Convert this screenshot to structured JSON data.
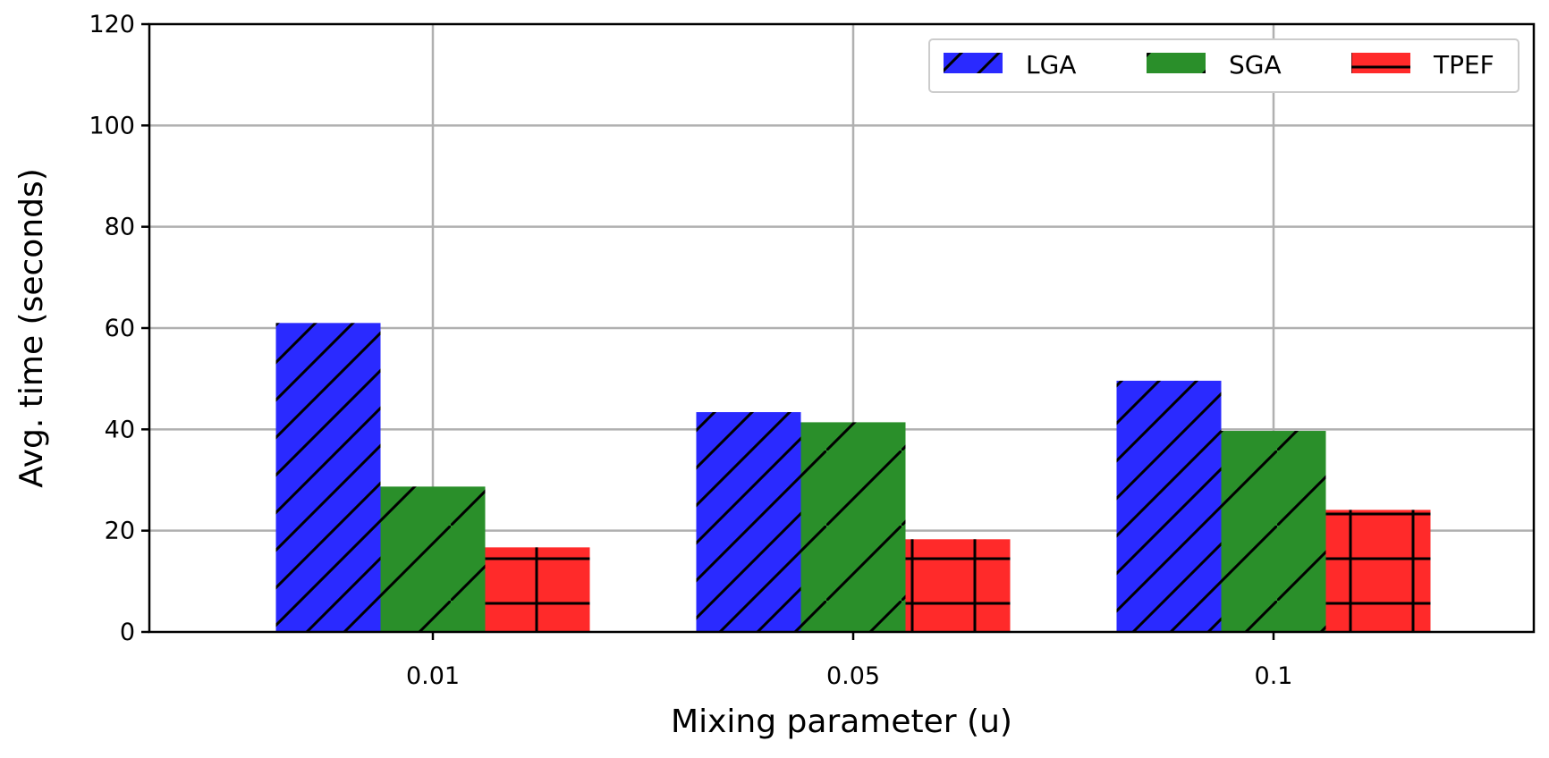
{
  "chart_data": {
    "type": "bar",
    "xlabel": "Mixing parameter (u)",
    "ylabel": "Avg. time (seconds)",
    "categories": [
      "0.01",
      "0.05",
      "0.1"
    ],
    "series": [
      {
        "name": "LGA",
        "values": [
          61.0,
          43.4,
          49.6
        ],
        "color": "#2a2aff",
        "hatch": "diagonal-sparse"
      },
      {
        "name": "SGA",
        "values": [
          28.7,
          41.4,
          39.7
        ],
        "color": "#2a8f2a",
        "hatch": "diagonal-sparser"
      },
      {
        "name": "TPEF",
        "values": [
          16.7,
          18.3,
          24.1
        ],
        "color": "#ff2a2a",
        "hatch": "grid"
      }
    ],
    "ylim": [
      0,
      120
    ],
    "yticks": [
      0,
      20,
      40,
      60,
      80,
      100,
      120
    ],
    "grid": true,
    "legend_position": "top-right"
  }
}
